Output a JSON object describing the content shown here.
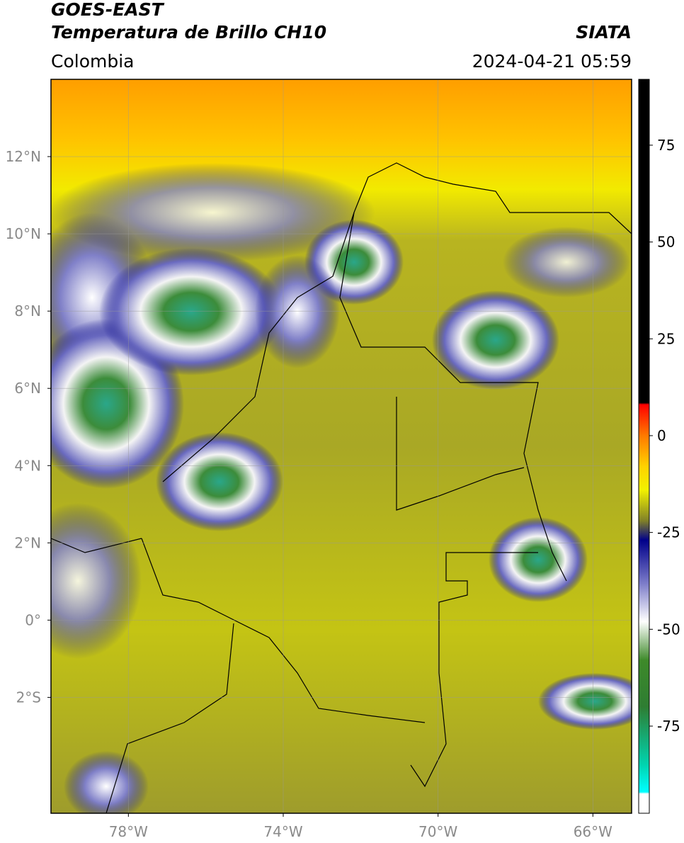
{
  "header": {
    "satellite": "GOES-EAST",
    "product": "Temperatura de Brillo CH10",
    "source": "SIATA",
    "region": "Colombia",
    "datetime": "2024-04-21 05:59"
  },
  "map": {
    "xlim": [
      -80,
      -65
    ],
    "ylim": [
      -5,
      14
    ],
    "xticks": [
      {
        "value": -78,
        "label": "78°W"
      },
      {
        "value": -74,
        "label": "74°W"
      },
      {
        "value": -70,
        "label": "70°W"
      },
      {
        "value": -66,
        "label": "66°W"
      }
    ],
    "yticks": [
      {
        "value": 12,
        "label": "12°N"
      },
      {
        "value": 10,
        "label": "10°N"
      },
      {
        "value": 8,
        "label": "8°N"
      },
      {
        "value": 6,
        "label": "6°N"
      },
      {
        "value": 4,
        "label": "4°N"
      },
      {
        "value": 2,
        "label": "2°N"
      },
      {
        "value": 0,
        "label": "0°"
      },
      {
        "value": -2,
        "label": "2°S"
      }
    ],
    "grid": true
  },
  "colorbar": {
    "lim": [
      -97.5,
      92
    ],
    "ticks": [
      75,
      50,
      25,
      0,
      -25,
      -50,
      -75
    ],
    "stops": [
      {
        "value": 92,
        "color": "#000000"
      },
      {
        "value": 8.5,
        "color": "#000000"
      },
      {
        "value": 8,
        "color": "#ff0000"
      },
      {
        "value": 0,
        "color": "#ff7a00"
      },
      {
        "value": -8,
        "color": "#ffd200"
      },
      {
        "value": -14,
        "color": "#f2f200"
      },
      {
        "value": -22,
        "color": "#808028"
      },
      {
        "value": -27,
        "color": "#00008a"
      },
      {
        "value": -38,
        "color": "#7a7ac8"
      },
      {
        "value": -48,
        "color": "#ffffff"
      },
      {
        "value": -58,
        "color": "#3e8a2a"
      },
      {
        "value": -70,
        "color": "#2e7d32"
      },
      {
        "value": -85,
        "color": "#00d4b0"
      },
      {
        "value": -92,
        "color": "#00ffff"
      },
      {
        "value": -92.5,
        "color": "#ffffff"
      },
      {
        "value": -97.5,
        "color": "#ffffff"
      }
    ]
  }
}
